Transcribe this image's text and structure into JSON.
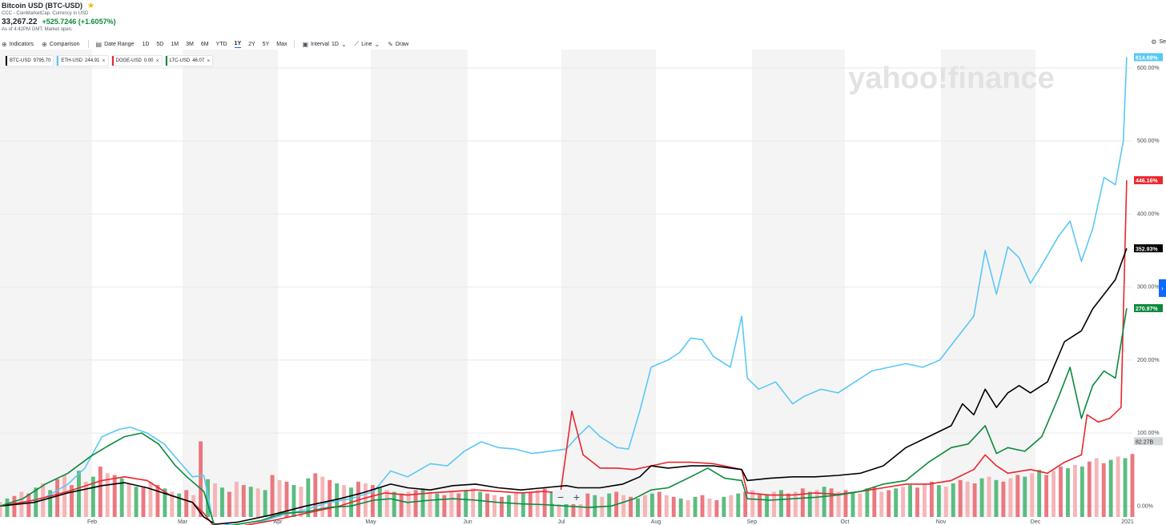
{
  "header": {
    "title": "Bitcoin USD (BTC-USD)",
    "source": "CCC - CoinMarketCap. Currency in USD",
    "price": "33,267.22",
    "change": "+525.7246 (+1.6057%)",
    "as_of": "As of 4:42PM GMT. Market open."
  },
  "toolbar": {
    "indicators": "Indicators",
    "comparison": "Comparison",
    "date_range": "Date Range",
    "ranges": [
      "1D",
      "5D",
      "1M",
      "3M",
      "6M",
      "YTD",
      "1Y",
      "2Y",
      "5Y",
      "Max"
    ],
    "active_range": "1Y",
    "interval_label": "Interval",
    "interval_value": "1D",
    "chart_type": "Line",
    "draw": "Draw",
    "settings": "Se"
  },
  "chips": [
    {
      "symbol": "BTC-USD",
      "value": "9795.70",
      "color": "#000000"
    },
    {
      "symbol": "ETH-USD",
      "value": "244.91",
      "color": "#5ac8f5"
    },
    {
      "symbol": "DOGE-USD",
      "value": "0.00",
      "color": "#e8262d"
    },
    {
      "symbol": "LTC-USD",
      "value": "46.07",
      "color": "#0b8a3d"
    }
  ],
  "watermark": "yahoo!finance",
  "zoom": {
    "minus": "−",
    "plus": "+"
  },
  "chart_data": {
    "type": "line",
    "y_unit": "% change",
    "ylim": [
      -15,
      625
    ],
    "y_ticks": [
      "0.00%",
      "100.00%",
      "200.00%",
      "300.00%",
      "400.00%",
      "500.00%",
      "600.00%"
    ],
    "x_tick_labels": [
      "Feb",
      "Mar",
      "Apr",
      "May",
      "Jun",
      "Jul",
      "Aug",
      "Sep",
      "Oct",
      "Nov",
      "Dec",
      "2021"
    ],
    "x_start_label": "",
    "series": [
      {
        "name": "ETH-USD",
        "color": "#5ac8f5",
        "last_label": "614.69%",
        "points": [
          [
            0,
            0
          ],
          [
            0.02,
            5
          ],
          [
            0.04,
            12
          ],
          [
            0.06,
            30
          ],
          [
            0.075,
            52
          ],
          [
            0.09,
            95
          ],
          [
            0.105,
            105
          ],
          [
            0.115,
            108
          ],
          [
            0.13,
            100
          ],
          [
            0.145,
            85
          ],
          [
            0.16,
            58
          ],
          [
            0.17,
            40
          ],
          [
            0.18,
            42
          ],
          [
            0.19,
            -35
          ],
          [
            0.2,
            -25
          ],
          [
            0.215,
            -28
          ],
          [
            0.23,
            -22
          ],
          [
            0.25,
            -12
          ],
          [
            0.27,
            -5
          ],
          [
            0.29,
            5
          ],
          [
            0.31,
            10
          ],
          [
            0.33,
            20
          ],
          [
            0.345,
            48
          ],
          [
            0.36,
            40
          ],
          [
            0.38,
            58
          ],
          [
            0.395,
            55
          ],
          [
            0.41,
            75
          ],
          [
            0.425,
            88
          ],
          [
            0.44,
            80
          ],
          [
            0.455,
            78
          ],
          [
            0.47,
            72
          ],
          [
            0.485,
            75
          ],
          [
            0.5,
            78
          ],
          [
            0.51,
            95
          ],
          [
            0.52,
            110
          ],
          [
            0.53,
            95
          ],
          [
            0.545,
            80
          ],
          [
            0.555,
            78
          ],
          [
            0.565,
            130
          ],
          [
            0.575,
            190
          ],
          [
            0.59,
            200
          ],
          [
            0.6,
            210
          ],
          [
            0.61,
            230
          ],
          [
            0.62,
            228
          ],
          [
            0.63,
            205
          ],
          [
            0.645,
            190
          ],
          [
            0.655,
            260
          ],
          [
            0.66,
            175
          ],
          [
            0.67,
            160
          ],
          [
            0.685,
            170
          ],
          [
            0.7,
            140
          ],
          [
            0.71,
            150
          ],
          [
            0.725,
            160
          ],
          [
            0.74,
            155
          ],
          [
            0.755,
            170
          ],
          [
            0.77,
            185
          ],
          [
            0.785,
            190
          ],
          [
            0.8,
            195
          ],
          [
            0.815,
            190
          ],
          [
            0.83,
            200
          ],
          [
            0.845,
            230
          ],
          [
            0.86,
            260
          ],
          [
            0.87,
            350
          ],
          [
            0.88,
            290
          ],
          [
            0.89,
            355
          ],
          [
            0.9,
            340
          ],
          [
            0.91,
            305
          ],
          [
            0.92,
            330
          ],
          [
            0.935,
            370
          ],
          [
            0.945,
            390
          ],
          [
            0.955,
            335
          ],
          [
            0.965,
            380
          ],
          [
            0.975,
            450
          ],
          [
            0.985,
            440
          ],
          [
            0.992,
            500
          ],
          [
            0.995,
            614.69
          ]
        ]
      },
      {
        "name": "DOGE-USD",
        "color": "#e8262d",
        "last_label": "446.16%",
        "points": [
          [
            0,
            0
          ],
          [
            0.03,
            8
          ],
          [
            0.06,
            20
          ],
          [
            0.09,
            35
          ],
          [
            0.11,
            40
          ],
          [
            0.13,
            35
          ],
          [
            0.15,
            15
          ],
          [
            0.17,
            5
          ],
          [
            0.18,
            -10
          ],
          [
            0.19,
            -30
          ],
          [
            0.21,
            -28
          ],
          [
            0.24,
            -20
          ],
          [
            0.27,
            -10
          ],
          [
            0.3,
            0
          ],
          [
            0.32,
            10
          ],
          [
            0.34,
            18
          ],
          [
            0.36,
            15
          ],
          [
            0.38,
            18
          ],
          [
            0.4,
            20
          ],
          [
            0.42,
            22
          ],
          [
            0.44,
            20
          ],
          [
            0.46,
            18
          ],
          [
            0.48,
            20
          ],
          [
            0.495,
            18
          ],
          [
            0.505,
            130
          ],
          [
            0.515,
            70
          ],
          [
            0.53,
            52
          ],
          [
            0.545,
            52
          ],
          [
            0.56,
            50
          ],
          [
            0.575,
            55
          ],
          [
            0.59,
            60
          ],
          [
            0.61,
            60
          ],
          [
            0.63,
            58
          ],
          [
            0.655,
            50
          ],
          [
            0.66,
            18
          ],
          [
            0.68,
            15
          ],
          [
            0.7,
            15
          ],
          [
            0.72,
            18
          ],
          [
            0.74,
            16
          ],
          [
            0.76,
            20
          ],
          [
            0.78,
            25
          ],
          [
            0.8,
            30
          ],
          [
            0.82,
            30
          ],
          [
            0.84,
            35
          ],
          [
            0.86,
            50
          ],
          [
            0.87,
            70
          ],
          [
            0.88,
            55
          ],
          [
            0.89,
            45
          ],
          [
            0.91,
            50
          ],
          [
            0.925,
            45
          ],
          [
            0.94,
            60
          ],
          [
            0.955,
            70
          ],
          [
            0.96,
            125
          ],
          [
            0.97,
            115
          ],
          [
            0.98,
            120
          ],
          [
            0.99,
            135
          ],
          [
            0.995,
            446.16
          ]
        ]
      },
      {
        "name": "BTC-USD",
        "color": "#000000",
        "last_label": "352.93%",
        "points": [
          [
            0,
            0
          ],
          [
            0.03,
            5
          ],
          [
            0.06,
            18
          ],
          [
            0.09,
            28
          ],
          [
            0.11,
            32
          ],
          [
            0.13,
            25
          ],
          [
            0.15,
            15
          ],
          [
            0.17,
            5
          ],
          [
            0.18,
            -15
          ],
          [
            0.19,
            -25
          ],
          [
            0.21,
            -22
          ],
          [
            0.24,
            -12
          ],
          [
            0.27,
            0
          ],
          [
            0.3,
            10
          ],
          [
            0.32,
            18
          ],
          [
            0.345,
            30
          ],
          [
            0.36,
            25
          ],
          [
            0.38,
            22
          ],
          [
            0.4,
            28
          ],
          [
            0.42,
            30
          ],
          [
            0.44,
            25
          ],
          [
            0.46,
            22
          ],
          [
            0.48,
            25
          ],
          [
            0.5,
            28
          ],
          [
            0.51,
            25
          ],
          [
            0.53,
            25
          ],
          [
            0.55,
            30
          ],
          [
            0.565,
            40
          ],
          [
            0.575,
            55
          ],
          [
            0.59,
            52
          ],
          [
            0.61,
            55
          ],
          [
            0.63,
            55
          ],
          [
            0.655,
            50
          ],
          [
            0.66,
            35
          ],
          [
            0.68,
            38
          ],
          [
            0.7,
            40
          ],
          [
            0.72,
            40
          ],
          [
            0.74,
            42
          ],
          [
            0.76,
            45
          ],
          [
            0.78,
            55
          ],
          [
            0.8,
            80
          ],
          [
            0.82,
            95
          ],
          [
            0.84,
            110
          ],
          [
            0.85,
            140
          ],
          [
            0.86,
            125
          ],
          [
            0.87,
            160
          ],
          [
            0.88,
            135
          ],
          [
            0.89,
            155
          ],
          [
            0.9,
            165
          ],
          [
            0.91,
            155
          ],
          [
            0.925,
            170
          ],
          [
            0.94,
            225
          ],
          [
            0.955,
            240
          ],
          [
            0.965,
            270
          ],
          [
            0.975,
            290
          ],
          [
            0.985,
            310
          ],
          [
            0.995,
            352.93
          ]
        ]
      },
      {
        "name": "LTC-USD",
        "color": "#0b8a3d",
        "last_label": "270.97%",
        "points": [
          [
            0,
            0
          ],
          [
            0.02,
            10
          ],
          [
            0.04,
            30
          ],
          [
            0.06,
            45
          ],
          [
            0.08,
            68
          ],
          [
            0.095,
            82
          ],
          [
            0.11,
            95
          ],
          [
            0.125,
            100
          ],
          [
            0.14,
            85
          ],
          [
            0.155,
            55
          ],
          [
            0.165,
            40
          ],
          [
            0.18,
            20
          ],
          [
            0.19,
            -30
          ],
          [
            0.21,
            -25
          ],
          [
            0.23,
            -20
          ],
          [
            0.25,
            -10
          ],
          [
            0.27,
            -8
          ],
          [
            0.29,
            -2
          ],
          [
            0.31,
            0
          ],
          [
            0.33,
            8
          ],
          [
            0.345,
            10
          ],
          [
            0.36,
            5
          ],
          [
            0.38,
            8
          ],
          [
            0.4,
            10
          ],
          [
            0.42,
            8
          ],
          [
            0.44,
            5
          ],
          [
            0.46,
            3
          ],
          [
            0.48,
            2
          ],
          [
            0.5,
            0
          ],
          [
            0.52,
            -2
          ],
          [
            0.54,
            0
          ],
          [
            0.56,
            10
          ],
          [
            0.575,
            22
          ],
          [
            0.59,
            25
          ],
          [
            0.61,
            40
          ],
          [
            0.625,
            52
          ],
          [
            0.64,
            38
          ],
          [
            0.655,
            35
          ],
          [
            0.66,
            10
          ],
          [
            0.68,
            8
          ],
          [
            0.7,
            10
          ],
          [
            0.72,
            12
          ],
          [
            0.74,
            15
          ],
          [
            0.76,
            20
          ],
          [
            0.78,
            30
          ],
          [
            0.8,
            35
          ],
          [
            0.82,
            60
          ],
          [
            0.84,
            80
          ],
          [
            0.855,
            85
          ],
          [
            0.87,
            110
          ],
          [
            0.88,
            72
          ],
          [
            0.89,
            80
          ],
          [
            0.905,
            75
          ],
          [
            0.92,
            95
          ],
          [
            0.935,
            150
          ],
          [
            0.945,
            190
          ],
          [
            0.955,
            120
          ],
          [
            0.965,
            165
          ],
          [
            0.975,
            185
          ],
          [
            0.985,
            175
          ],
          [
            0.995,
            270.97
          ]
        ]
      }
    ],
    "volume_label": "82.27B",
    "volume": [
      0.18,
      0.22,
      0.25,
      0.3,
      0.28,
      0.35,
      0.4,
      0.32,
      0.45,
      0.5,
      0.38,
      0.55,
      0.42,
      0.48,
      0.6,
      0.52,
      0.5,
      0.46,
      0.4,
      0.36,
      0.35,
      0.42,
      0.38,
      0.34,
      0.3,
      0.28,
      0.32,
      0.26,
      0.9,
      0.45,
      0.4,
      0.35,
      0.3,
      0.42,
      0.38,
      0.36,
      0.34,
      0.32,
      0.5,
      0.44,
      0.42,
      0.38,
      0.36,
      0.46,
      0.52,
      0.48,
      0.44,
      0.4,
      0.38,
      0.35,
      0.42,
      0.4,
      0.38,
      0.35,
      0.32,
      0.3,
      0.28,
      0.3,
      0.32,
      0.34,
      0.3,
      0.28,
      0.26,
      0.3,
      0.28,
      0.32,
      0.34,
      0.3,
      0.28,
      0.26,
      0.24,
      0.26,
      0.3,
      0.28,
      0.3,
      0.32,
      0.34,
      0.3,
      0.28,
      0.3,
      0.32,
      0.3,
      0.28,
      0.26,
      0.24,
      0.28,
      0.3,
      0.26,
      0.24,
      0.22,
      0.26,
      0.28,
      0.3,
      0.26,
      0.24,
      0.22,
      0.2,
      0.24,
      0.26,
      0.22,
      0.2,
      0.24,
      0.26,
      0.28,
      0.3,
      0.32,
      0.28,
      0.26,
      0.3,
      0.32,
      0.28,
      0.3,
      0.34,
      0.3,
      0.32,
      0.36,
      0.34,
      0.3,
      0.32,
      0.3,
      0.28,
      0.34,
      0.36,
      0.3,
      0.32,
      0.34,
      0.36,
      0.38,
      0.35,
      0.4,
      0.42,
      0.38,
      0.36,
      0.4,
      0.44,
      0.42,
      0.4,
      0.46,
      0.48,
      0.44,
      0.42,
      0.46,
      0.5,
      0.48,
      0.52,
      0.56,
      0.5,
      0.55,
      0.6,
      0.58,
      0.62,
      0.6,
      0.66,
      0.7,
      0.64,
      0.68,
      0.72,
      0.7,
      0.75
    ]
  }
}
